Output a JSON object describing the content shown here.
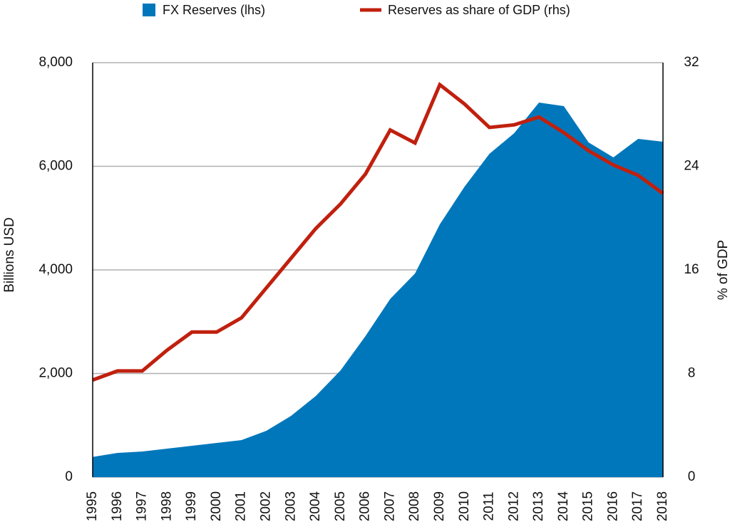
{
  "chart_data": {
    "type": "area-line",
    "x": [
      1995,
      1996,
      1997,
      1998,
      1999,
      2000,
      2001,
      2002,
      2003,
      2004,
      2005,
      2006,
      2007,
      2008,
      2009,
      2010,
      2011,
      2012,
      2013,
      2014,
      2015,
      2016,
      2017,
      2018
    ],
    "xlim": [
      1995,
      2018
    ],
    "series": [
      {
        "name": "FX Reserves (lhs)",
        "color": "#0077bb",
        "axis": "y",
        "values": [
          390,
          467,
          495,
          550,
          605,
          660,
          715,
          893,
          1182,
          1567,
          2062,
          2722,
          3440,
          3931,
          4880,
          5608,
          6241,
          6639,
          7230,
          7162,
          6460,
          6172,
          6529,
          6474
        ]
      },
      {
        "name": "Reserves as share of GDP (rhs)",
        "color": "#c0200e",
        "axis": "y2",
        "values": [
          7.5,
          8.2,
          8.2,
          9.8,
          11.2,
          11.2,
          12.3,
          14.6,
          16.9,
          19.2,
          21.1,
          23.4,
          26.8,
          25.8,
          30.3,
          28.8,
          27.0,
          27.2,
          27.8,
          26.6,
          25.2,
          24.1,
          23.3,
          21.9
        ]
      }
    ],
    "ylabel": "Billions USD",
    "y2label": "% of GDP",
    "ylim": [
      0,
      8000
    ],
    "yticks": [
      0,
      {
        "value": 2000,
        "label": "2,000"
      },
      {
        "value": 4000,
        "label": "4,000"
      },
      {
        "value": 6000,
        "label": "6,000"
      },
      {
        "value": 8000,
        "label": "8,000"
      }
    ],
    "y2lim": [
      0,
      32
    ],
    "y2ticks": [
      0,
      8,
      16,
      24,
      32
    ],
    "grid": true
  }
}
